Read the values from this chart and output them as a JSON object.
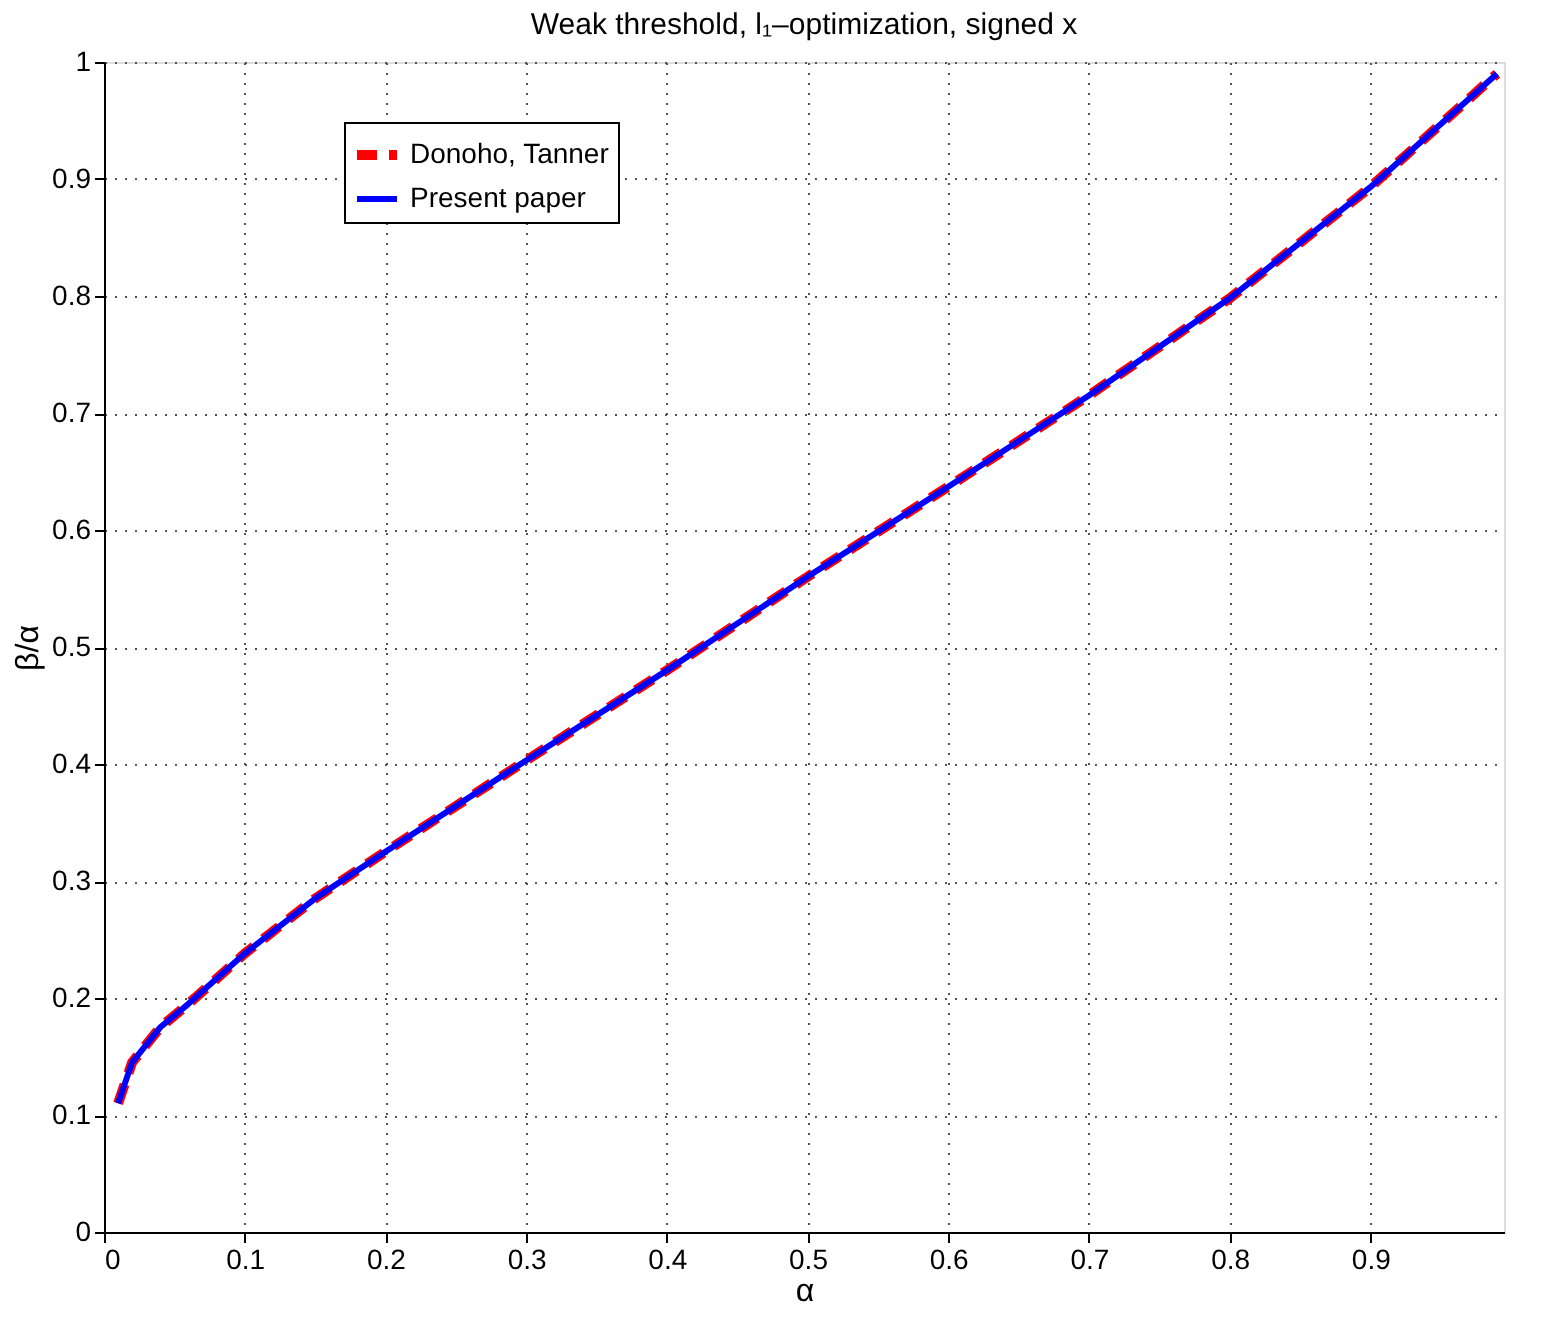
{
  "chart_data": {
    "type": "line",
    "title": "Weak threshold, l₁–optimization, signed  x",
    "xlabel": "α",
    "ylabel": "β/α",
    "x": [
      0.01,
      0.02,
      0.04,
      0.06,
      0.1,
      0.15,
      0.2,
      0.3,
      0.4,
      0.5,
      0.6,
      0.7,
      0.8,
      0.9,
      0.99
    ],
    "series": [
      {
        "name": "Donoho, Tanner",
        "color": "#ff0000",
        "line_style": "dashed",
        "values": [
          0.11,
          0.145,
          0.175,
          0.195,
          0.238,
          0.285,
          0.325,
          0.403,
          0.48,
          0.56,
          0.637,
          0.715,
          0.798,
          0.893,
          0.99
        ]
      },
      {
        "name": "Present paper",
        "color": "#0000ff",
        "line_style": "solid",
        "values": [
          0.11,
          0.145,
          0.175,
          0.195,
          0.238,
          0.285,
          0.325,
          0.403,
          0.48,
          0.56,
          0.637,
          0.715,
          0.798,
          0.893,
          0.99
        ]
      }
    ],
    "xlim": [
      0,
      0.995
    ],
    "xticks": [
      0,
      0.1,
      0.2,
      0.3,
      0.4,
      0.5,
      0.6,
      0.7,
      0.8,
      0.9
    ],
    "ylim": [
      0,
      1
    ],
    "yticks": [
      0,
      0.1,
      0.2,
      0.3,
      0.4,
      0.5,
      0.6,
      0.7,
      0.8,
      0.9,
      1
    ],
    "grid": true,
    "legend": "top left"
  }
}
